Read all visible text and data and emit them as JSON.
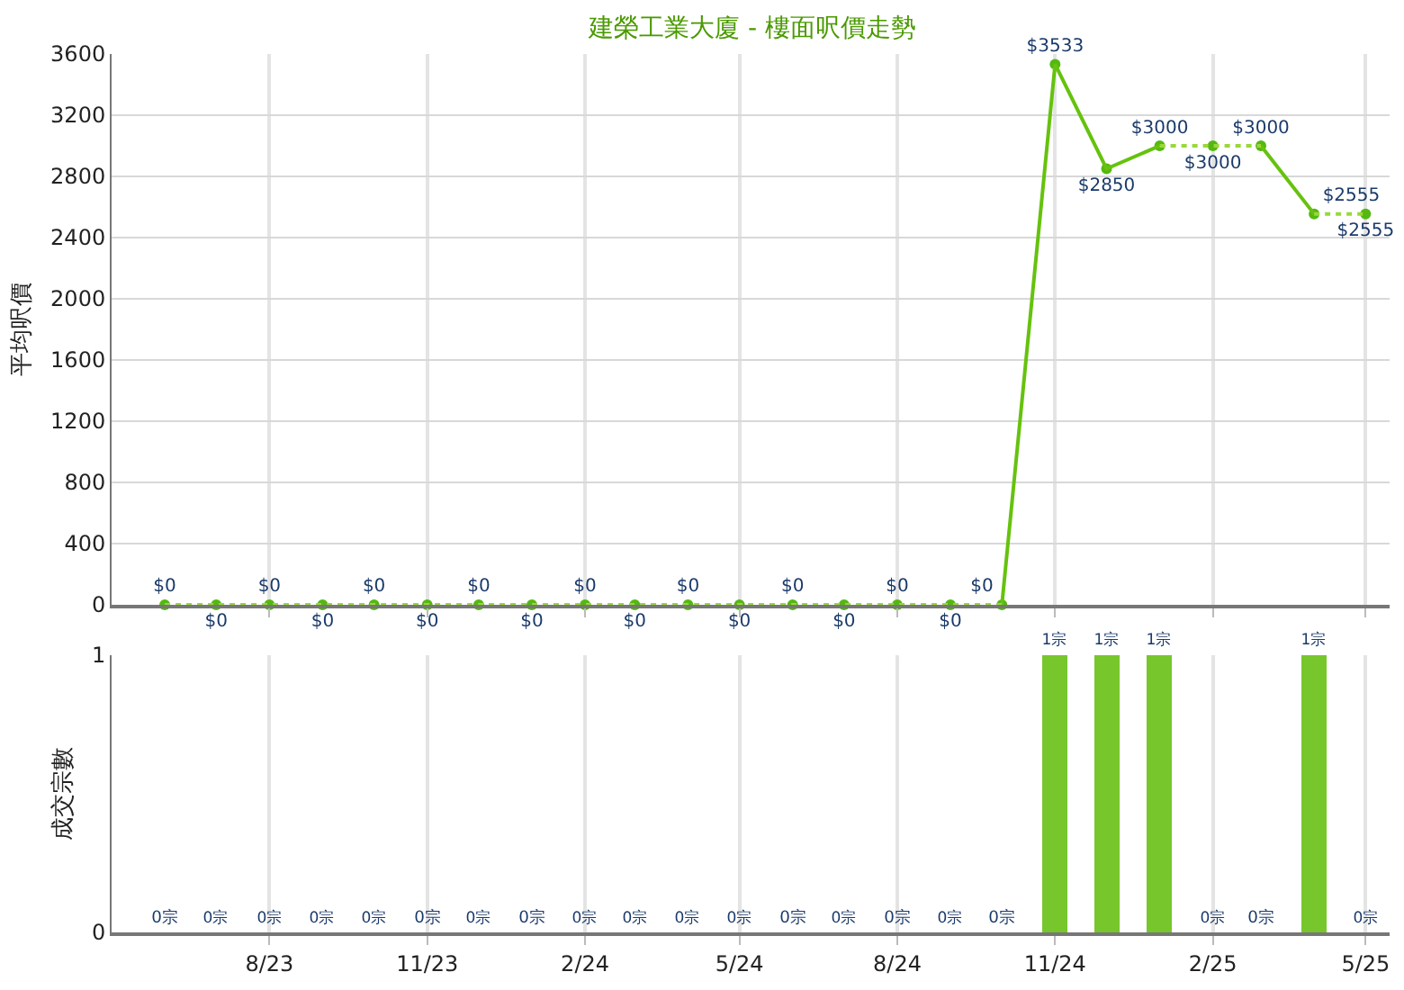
{
  "chart_data": [
    {
      "type": "line",
      "title": "建榮工業大廈 - 樓面呎價走勢",
      "ylabel": "平均呎價",
      "tick_labels": "y",
      "grid": true,
      "x": [
        "2023-06",
        "2023-07",
        "2023-08",
        "2023-09",
        "2023-10",
        "2023-11",
        "2023-12",
        "2024-01",
        "2024-02",
        "2024-03",
        "2024-04",
        "2024-05",
        "2024-06",
        "2024-07",
        "2024-08",
        "2024-09",
        "2024-10",
        "2024-11",
        "2024-12",
        "2025-01",
        "2025-02",
        "2025-03",
        "2025-04",
        "2025-05"
      ],
      "xlim": [
        "2023-05",
        "2025-05-15"
      ],
      "xticks": [
        {
          "value": "2023-08",
          "label": null
        },
        {
          "value": "2023-11",
          "label": null
        },
        {
          "value": "2024-02",
          "label": null
        },
        {
          "value": "2024-05",
          "label": null
        },
        {
          "value": "2024-08",
          "label": null
        },
        {
          "value": "2024-11",
          "label": null
        },
        {
          "value": "2025-02",
          "label": null
        },
        {
          "value": "2025-05",
          "label": null
        }
      ],
      "ylim": [
        0,
        3600
      ],
      "yticks": [
        0,
        400,
        800,
        1200,
        1600,
        2000,
        2400,
        2800,
        3200,
        3600
      ],
      "series": [
        {
          "type": "scatter",
          "marker": "circle",
          "color": "#55b811",
          "values": [
            0,
            0,
            0,
            0,
            0,
            0,
            0,
            0,
            0,
            0,
            0,
            0,
            0,
            0,
            0,
            0,
            0,
            3533,
            2850,
            3000,
            3000,
            3000,
            2555,
            2555
          ],
          "value_labels": [
            "$0",
            "$0",
            "$0",
            "$0",
            "$0",
            "$0",
            "$0",
            "$0",
            "$0",
            "$0",
            "$0",
            "$0",
            "$0",
            "$0",
            "$0",
            "$0",
            "$0",
            "$3533",
            "$2850",
            "$3000",
            "$3000",
            "$3000",
            "$2555",
            "$2555"
          ]
        },
        {
          "type": "line",
          "line_style": "solid",
          "color": "#66c20e",
          "values": [
            null,
            null,
            null,
            null,
            null,
            null,
            null,
            null,
            null,
            null,
            null,
            null,
            null,
            null,
            null,
            null,
            0,
            3533,
            2850,
            3000,
            null,
            3000,
            2555,
            null
          ]
        },
        {
          "type": "line",
          "line_style": "dotted",
          "color": "#99d83a",
          "values": [
            0,
            0,
            0,
            0,
            0,
            0,
            0,
            0,
            0,
            0,
            0,
            0,
            0,
            0,
            0,
            0,
            0,
            null,
            null,
            3000,
            3000,
            3000,
            null,
            null
          ]
        },
        {
          "type": "line",
          "line_style": "dotted",
          "color": "#99d83a",
          "values": [
            null,
            null,
            null,
            null,
            null,
            null,
            null,
            null,
            null,
            null,
            null,
            null,
            null,
            null,
            null,
            null,
            null,
            null,
            null,
            null,
            null,
            null,
            2555,
            2555
          ]
        }
      ]
    },
    {
      "type": "bar",
      "ylabel": "成交宗數",
      "grid": true,
      "x": [
        "2023-06",
        "2023-07",
        "2023-08",
        "2023-09",
        "2023-10",
        "2023-11",
        "2023-12",
        "2024-01",
        "2024-02",
        "2024-03",
        "2024-04",
        "2024-05",
        "2024-06",
        "2024-07",
        "2024-08",
        "2024-09",
        "2024-10",
        "2024-11",
        "2024-12",
        "2025-01",
        "2025-02",
        "2025-03",
        "2025-04",
        "2025-05"
      ],
      "xlim": [
        "2023-05",
        "2025-05-15"
      ],
      "xticks": [
        {
          "value": "2023-08",
          "label": "8/23"
        },
        {
          "value": "2023-11",
          "label": "11/23"
        },
        {
          "value": "2024-02",
          "label": "2/24"
        },
        {
          "value": "2024-05",
          "label": "5/24"
        },
        {
          "value": "2024-08",
          "label": "8/24"
        },
        {
          "value": "2024-11",
          "label": "11/24"
        },
        {
          "value": "2025-02",
          "label": "2/25"
        },
        {
          "value": "2025-05",
          "label": "5/25"
        }
      ],
      "ylim": [
        0,
        1
      ],
      "yticks": [
        0,
        1
      ],
      "series": [
        {
          "color": "#77c62b",
          "values": [
            0,
            0,
            0,
            0,
            0,
            0,
            0,
            0,
            0,
            0,
            0,
            0,
            0,
            0,
            0,
            0,
            0,
            1,
            1,
            1,
            0,
            0,
            1,
            0
          ],
          "value_labels": [
            "0宗",
            "0宗",
            "0宗",
            "0宗",
            "0宗",
            "0宗",
            "0宗",
            "0宗",
            "0宗",
            "0宗",
            "0宗",
            "0宗",
            "0宗",
            "0宗",
            "0宗",
            "0宗",
            "0宗",
            "1宗",
            "1宗",
            "1宗",
            "0宗",
            "0宗",
            "1宗",
            "0宗"
          ]
        }
      ]
    }
  ]
}
